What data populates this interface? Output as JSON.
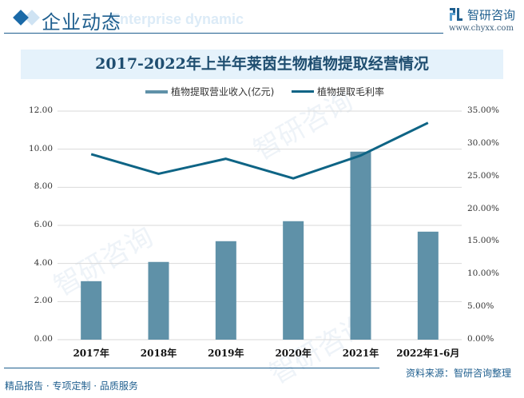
{
  "header": {
    "section_title": "企业动态",
    "section_subtitle": "Enterprise dynamic",
    "logo_name": "智研咨询",
    "logo_url": "www.chyxx.com"
  },
  "chart_title": "2017-2022年上半年莱茵生物植物提取经营情况",
  "legend": {
    "bar": "植物提取营业收入(亿元)",
    "line": "植物提取毛利率"
  },
  "colors": {
    "bar": "#5f91a8",
    "line": "#0e6485",
    "title_band": "#e5f2fb",
    "brand": "#1f5f8f"
  },
  "axes": {
    "left_ticks": [
      "0.00",
      "2.00",
      "4.00",
      "6.00",
      "8.00",
      "10.00",
      "12.00"
    ],
    "right_ticks": [
      "0.00%",
      "5.00%",
      "10.00%",
      "15.00%",
      "20.00%",
      "25.00%",
      "30.00%",
      "35.00%"
    ]
  },
  "x_labels": [
    "2017年",
    "2018年",
    "2019年",
    "2020年",
    "2021年",
    "2022年1-6月"
  ],
  "footer": {
    "left": "精品报告 · 专项定制 · 品质服务",
    "source": "资料来源：智研咨询整理"
  },
  "chart_data": {
    "type": "bar",
    "title": "2017-2022年上半年莱茵生物植物提取经营情况",
    "categories": [
      "2017年",
      "2018年",
      "2019年",
      "2020年",
      "2021年",
      "2022年1-6月"
    ],
    "series": [
      {
        "name": "植物提取营业收入(亿元)",
        "type": "bar",
        "axis": "left",
        "values": [
          3.07,
          4.08,
          5.17,
          6.22,
          9.87,
          5.67
        ]
      },
      {
        "name": "植物提取毛利率",
        "type": "line",
        "axis": "right",
        "values": [
          28.4,
          25.4,
          27.7,
          24.7,
          28.2,
          33.2
        ]
      }
    ],
    "ylim_left": [
      0,
      12
    ],
    "ylim_right": [
      0,
      35
    ],
    "ylabel_left": "亿元",
    "ylabel_right": "%",
    "grid": true,
    "legend_position": "top"
  }
}
